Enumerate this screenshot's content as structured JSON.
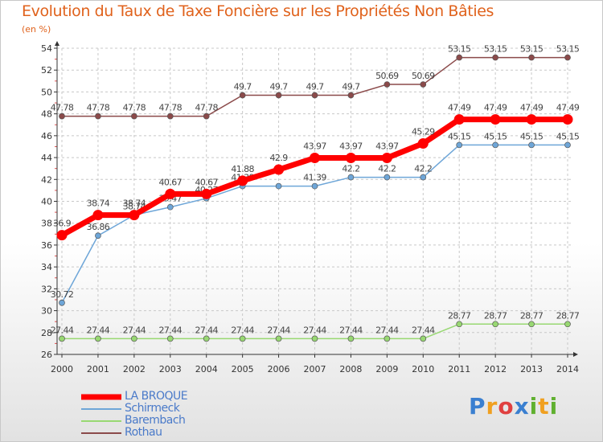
{
  "header": {
    "title": "Evolution du Taux de Taxe Foncière sur les Propriétés Non Bâties",
    "unit": "(en %)"
  },
  "colors": {
    "title": "#e0621c",
    "axis": "#333333",
    "grid": "#c8c8c8",
    "tick_mark": "#e05050",
    "legend_text": "#4a7ac9",
    "label_text": "#444444"
  },
  "logo": {
    "letters": [
      "P",
      "r",
      "o",
      "x",
      "i",
      "t",
      "i"
    ],
    "colors": [
      "#3a7fd0",
      "#f0a020",
      "#e04040",
      "#3a7fd0",
      "#60b030",
      "#f0a020",
      "#60b030"
    ]
  },
  "chart_data": {
    "type": "line",
    "title": "Evolution du Taux de Taxe Foncière sur les Propriétés Non Bâties",
    "ylabel": "(en %)",
    "xlabel": "",
    "x": [
      "2000",
      "2001",
      "2002",
      "2003",
      "2004",
      "2005",
      "2006",
      "2007",
      "2008",
      "2009",
      "2010",
      "2011",
      "2012",
      "2013",
      "2014"
    ],
    "ylim": [
      26,
      54
    ],
    "yticks": [
      "26",
      "28",
      "30",
      "32",
      "34",
      "36",
      "38",
      "40",
      "42",
      "44",
      "46",
      "48",
      "50",
      "52",
      "54"
    ],
    "grid": true,
    "series": [
      {
        "name": "LA BROQUE",
        "color": "#ff0000",
        "emphasis": "thick",
        "values": [
          36.9,
          38.74,
          38.74,
          40.67,
          40.67,
          41.88,
          42.9,
          43.97,
          43.97,
          43.97,
          45.29,
          47.49,
          47.49,
          47.49,
          47.49
        ],
        "labels": [
          "36.9",
          "38.74",
          "38.74",
          "40.67",
          "40.67",
          "41.88",
          "42.9",
          "43.97",
          "43.97",
          "43.97",
          "45.29",
          "47.49",
          "47.49",
          "47.49",
          "47.49"
        ]
      },
      {
        "name": "Schirmeck",
        "color": "#6ea6d8",
        "emphasis": "thin",
        "values": [
          30.72,
          36.86,
          38.74,
          39.47,
          40.27,
          41.39,
          41.39,
          41.39,
          42.2,
          42.2,
          42.2,
          45.15,
          45.15,
          45.15,
          45.15
        ],
        "labels": [
          "30.72",
          "36.86",
          "38.74",
          "39.47",
          "40.27",
          "41.39",
          "",
          "41.39",
          "42.2",
          "42.2",
          "42.2",
          "45.15",
          "45.15",
          "45.15",
          "45.15"
        ]
      },
      {
        "name": "Barembach",
        "color": "#98d872",
        "emphasis": "thin",
        "values": [
          27.44,
          27.44,
          27.44,
          27.44,
          27.44,
          27.44,
          27.44,
          27.44,
          27.44,
          27.44,
          27.44,
          28.77,
          28.77,
          28.77,
          28.77
        ],
        "labels": [
          "27.44",
          "27.44",
          "27.44",
          "27.44",
          "27.44",
          "27.44",
          "27.44",
          "27.44",
          "27.44",
          "27.44",
          "27.44",
          "28.77",
          "28.77",
          "28.77",
          "28.77"
        ]
      },
      {
        "name": "Rothau",
        "color": "#8b4a4a",
        "emphasis": "thin",
        "values": [
          47.78,
          47.78,
          47.78,
          47.78,
          47.78,
          49.7,
          49.7,
          49.7,
          49.7,
          50.69,
          50.69,
          53.15,
          53.15,
          53.15,
          53.15
        ],
        "labels": [
          "47.78",
          "47.78",
          "47.78",
          "47.78",
          "47.78",
          "49.7",
          "49.7",
          "49.7",
          "49.7",
          "50.69",
          "50.69",
          "53.15",
          "53.15",
          "53.15",
          "53.15"
        ]
      }
    ]
  }
}
